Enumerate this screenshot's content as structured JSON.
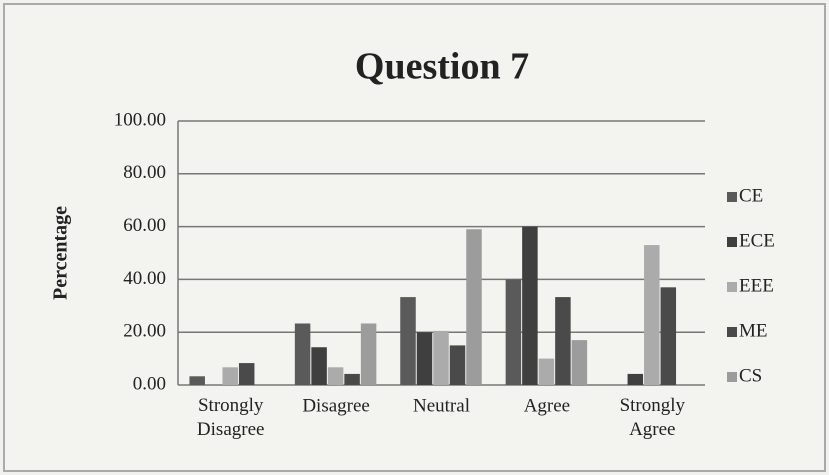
{
  "chart_data": {
    "type": "bar",
    "title": "Question 7",
    "y_label": "Percentage",
    "categories": [
      "Strongly Disagree",
      "Disagree",
      "Neutral",
      "Agree",
      "Strongly Agree"
    ],
    "series": [
      {
        "name": "CE",
        "color": "#5a5a5a",
        "values": [
          3.3,
          23.3,
          33.3,
          40,
          0
        ]
      },
      {
        "name": "ECE",
        "color": "#3f3f3f",
        "values": [
          0,
          14.3,
          20,
          60,
          4.2
        ]
      },
      {
        "name": "EEE",
        "color": "#ababab",
        "values": [
          6.7,
          6.7,
          20.5,
          10,
          53
        ]
      },
      {
        "name": "ME",
        "color": "#4a4a4a",
        "values": [
          8.3,
          4.2,
          15,
          33.3,
          37
        ]
      },
      {
        "name": "CS",
        "color": "#9c9c9c",
        "values": [
          0,
          23.3,
          59,
          17,
          0
        ]
      }
    ],
    "ylim": [
      0,
      100
    ],
    "yticks": [
      {
        "value": 0,
        "label": "0.00"
      },
      {
        "value": 20,
        "label": "20.00"
      },
      {
        "value": 40,
        "label": "40.00"
      },
      {
        "value": 60,
        "label": "60.00"
      },
      {
        "value": 80,
        "label": "80.00"
      },
      {
        "value": 100,
        "label": "100.00"
      }
    ],
    "grid": true,
    "legend": "right"
  }
}
